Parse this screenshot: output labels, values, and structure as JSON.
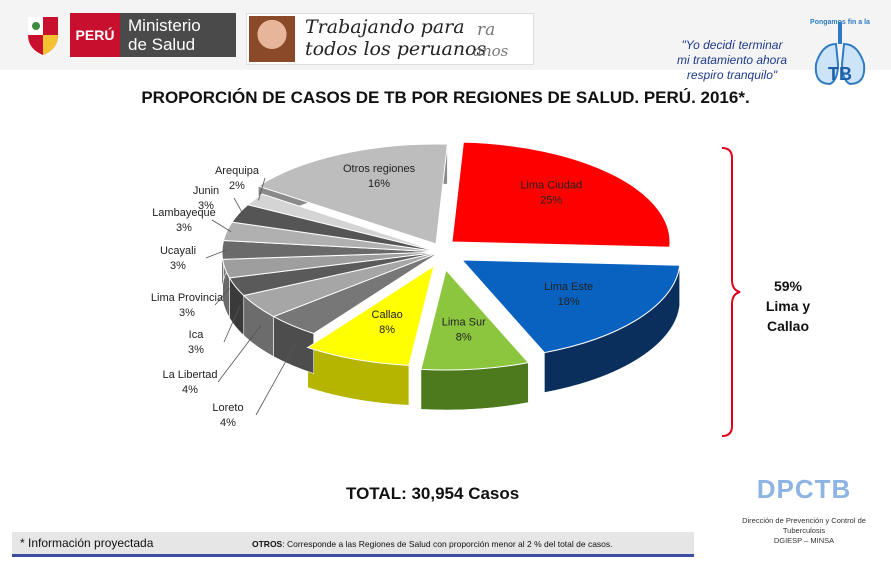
{
  "header": {
    "peru_label": "PERÚ",
    "ministry_line1": "Ministerio",
    "ministry_line2": "de Salud",
    "banner_line1": "Trabajando para",
    "banner_line2": "todos los peruanos",
    "banner_ghost1": "ra",
    "banner_ghost2": "anos",
    "quote_line1": "\"Yo decidí terminar",
    "quote_line2": "mi tratamiento ahora",
    "quote_line3": "respiro tranquilo\"",
    "tb_logo_text": "Pongamos fin a la",
    "tb_logo_tb": "TB"
  },
  "chart_data": {
    "type": "pie",
    "title": "PROPORCIÓN DE CASOS DE TB POR REGIONES DE SALUD. PERÚ. 2016*.",
    "slices": [
      {
        "label": "Lima Ciudad",
        "value": 25,
        "display": "25%",
        "color": "#ff0000",
        "side": "#b80000"
      },
      {
        "label": "Lima Este",
        "value": 18,
        "display": "18%",
        "color": "#0a62c0",
        "side": "#0a2f5c"
      },
      {
        "label": "Lima Sur",
        "value": 8,
        "display": "8%",
        "color": "#8cc63f",
        "side": "#4e7a1e"
      },
      {
        "label": "Callao",
        "value": 8,
        "display": "8%",
        "color": "#ffff00",
        "side": "#b5b500"
      },
      {
        "label": "Loreto",
        "value": 4,
        "display": "4%",
        "color": "#777777",
        "side": "#4d4d4d"
      },
      {
        "label": "La Libertad",
        "value": 4,
        "display": "4%",
        "color": "#a6a6a6",
        "side": "#6c6c6c"
      },
      {
        "label": "Ica",
        "value": 3,
        "display": "3%",
        "color": "#5a5a5a",
        "side": "#3a3a3a"
      },
      {
        "label": "Lima Provincia",
        "value": 3,
        "display": "3%",
        "color": "#9e9e9e",
        "side": "#6a6a6a"
      },
      {
        "label": "Ucayali",
        "value": 3,
        "display": "3%",
        "color": "#6a6a6a",
        "side": "#444444"
      },
      {
        "label": "Lambayeque",
        "value": 3,
        "display": "3%",
        "color": "#b0b0b0",
        "side": "#777777"
      },
      {
        "label": "Junin",
        "value": 3,
        "display": "3%",
        "color": "#555555",
        "side": "#363636"
      },
      {
        "label": "Arequipa",
        "value": 2,
        "display": "2%",
        "color": "#d4d4d4",
        "side": "#999999"
      },
      {
        "label": "Otros regiones",
        "value": 16,
        "display": "16%",
        "color": "#bdbdbd",
        "side": "#8a8a8a"
      }
    ]
  },
  "brace": {
    "percent": "59%",
    "label": "Lima y Callao",
    "color": "#e3001b"
  },
  "total": "TOTAL: 30,954 Casos",
  "dpctb": {
    "name": "DPCTB",
    "line1": "Dirección de Prevención y Control de",
    "line2": "Tuberculosis",
    "line3": "DGIESP – MINSA"
  },
  "footer": {
    "note": "* Información proyectada",
    "otros_label": "OTROS",
    "otros_text": ": Corresponde a las Regiones de Salud con proporción menor al 2 % del total de casos."
  }
}
